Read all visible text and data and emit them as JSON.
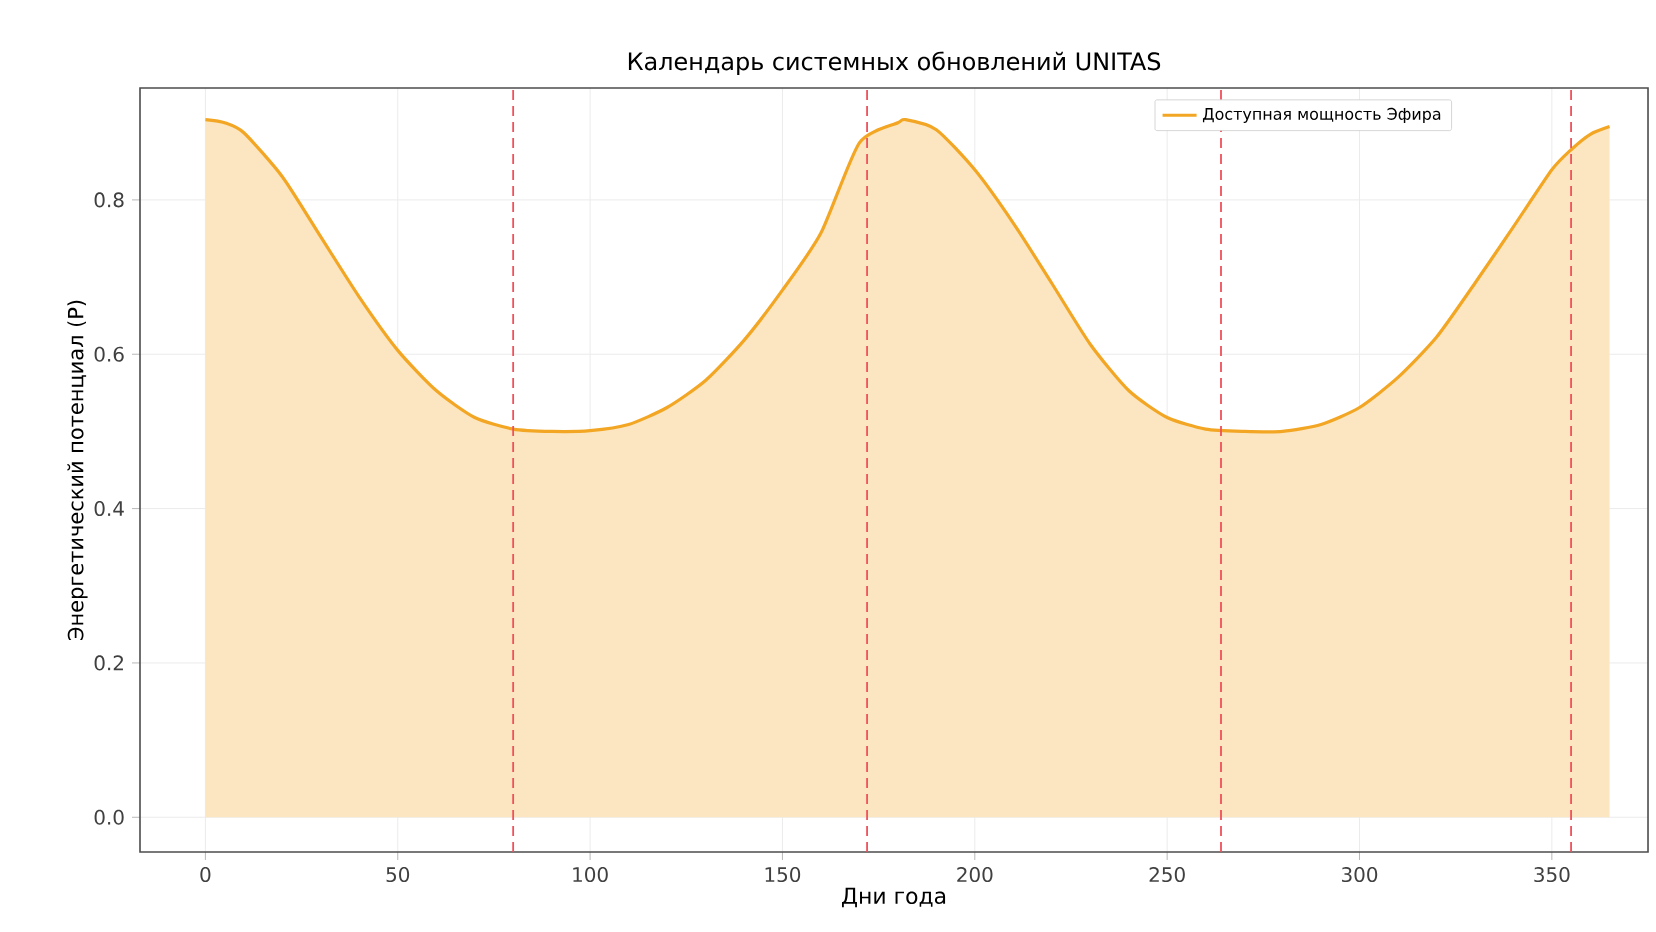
{
  "chart_data": {
    "type": "area",
    "title": "Календарь системных обновлений UNITAS",
    "xlabel": "Дни года",
    "ylabel": "Энергетический потенциал (P)",
    "x": [
      0,
      5,
      10,
      20,
      30,
      40,
      50,
      60,
      70,
      80,
      90,
      100,
      110,
      120,
      130,
      140,
      150,
      160,
      170,
      180,
      182,
      190,
      200,
      210,
      220,
      230,
      240,
      250,
      260,
      270,
      280,
      290,
      300,
      310,
      320,
      330,
      340,
      350,
      355,
      360,
      365
    ],
    "series": [
      {
        "name": "Доступная мощность Эфира",
        "color": "#f2a623",
        "values": [
          0.904,
          0.9,
          0.887,
          0.83,
          0.752,
          0.674,
          0.605,
          0.553,
          0.518,
          0.503,
          0.5,
          0.501,
          0.509,
          0.531,
          0.566,
          0.618,
          0.683,
          0.757,
          0.874,
          0.9,
          0.904,
          0.891,
          0.839,
          0.77,
          0.692,
          0.613,
          0.553,
          0.518,
          0.503,
          0.5,
          0.5,
          0.509,
          0.531,
          0.57,
          0.622,
          0.692,
          0.765,
          0.839,
          0.865,
          0.885,
          0.895
        ]
      }
    ],
    "xlim": [
      -17,
      375
    ],
    "ylim": [
      -0.045,
      0.945
    ],
    "xticks": [
      0,
      50,
      100,
      150,
      200,
      250,
      300,
      350
    ],
    "yticks": [
      {
        "value": 0,
        "label": "0.0"
      },
      0.2,
      0.4,
      0.6,
      0.8
    ],
    "ref_lines": [
      {
        "axis": "x",
        "value": 80,
        "color": "#f0505a",
        "line_style": "dashed"
      },
      {
        "axis": "x",
        "value": 172,
        "color": "#f0505a",
        "line_style": "dashed"
      },
      {
        "axis": "x",
        "value": 264,
        "color": "#f0505a",
        "line_style": "dashed"
      },
      {
        "axis": "x",
        "value": 355,
        "color": "#f0505a",
        "line_style": "dashed"
      }
    ],
    "grid": true,
    "legend": "top right"
  }
}
